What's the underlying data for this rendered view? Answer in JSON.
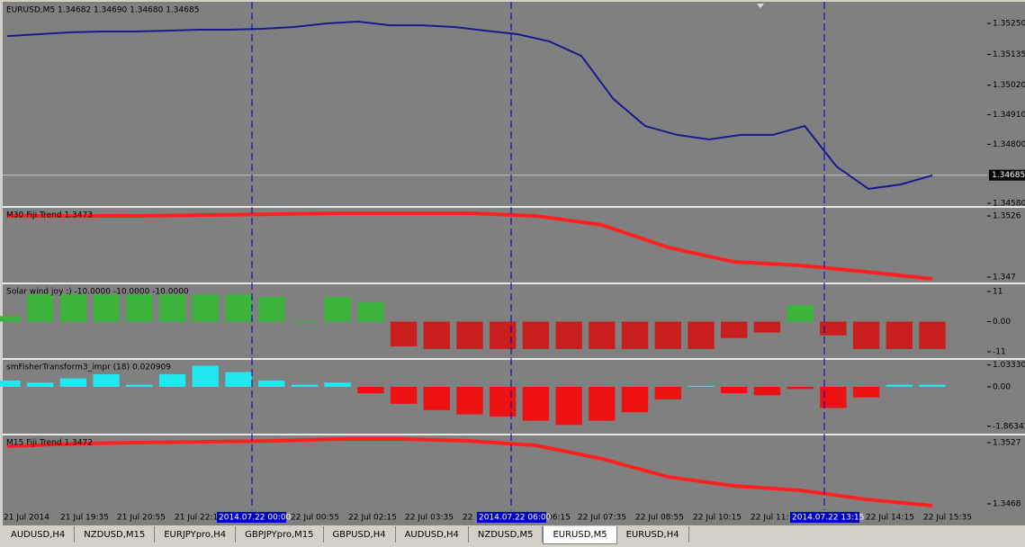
{
  "window": {
    "panels": [
      {
        "type": "line",
        "title": "EURUSD,M5  1.34682 1.34690 1.34680 1.34685",
        "color": "#1a1a8c",
        "values": [
          1.35203,
          1.3521,
          1.35217,
          1.3522,
          1.3522,
          1.35223,
          1.35227,
          1.35227,
          1.3523,
          1.35237,
          1.3525,
          1.35257,
          1.35243,
          1.35243,
          1.35237,
          1.35223,
          1.3521,
          1.35183,
          1.35129,
          1.34969,
          1.34868,
          1.34835,
          1.34818,
          1.34835,
          1.34835,
          1.34868,
          1.34717,
          1.34634,
          1.3465,
          1.34684
        ],
        "ylim": [
          1.3457,
          1.35324
        ],
        "yticks": [
          {
            "value": 1.3525,
            "label": "1.35250"
          },
          1.35135,
          {
            "value": 1.3502,
            "label": "1.35020"
          },
          {
            "value": 1.3491,
            "label": "1.34910"
          },
          {
            "value": 1.348,
            "label": "1.34800"
          },
          {
            "value": 1.3458,
            "label": "1.34580"
          }
        ],
        "current_price": 1.34685
      },
      {
        "type": "line",
        "title": "M30 Fiji Trend 1.3473",
        "color": "#ff2020",
        "values": [
          1.3526,
          1.3526,
          1.3526,
          1.35268,
          1.35276,
          1.35285,
          1.35285,
          1.35285,
          1.3526,
          1.35178,
          1.34972,
          1.3484,
          1.34807,
          1.34749,
          1.34684
        ],
        "ylim": [
          1.34651,
          1.35326
        ],
        "yticks": [
          1.3526,
          1.347
        ]
      },
      {
        "type": "histogram",
        "title": "Solar wind joy :) -10.0000 -10.0000 -10.0000",
        "pos_color": "#3cb43c",
        "neg_color": "#c81e1e",
        "values": [
          2,
          10,
          10,
          10,
          10,
          10,
          10,
          10,
          9,
          0,
          9,
          7,
          -9,
          -10,
          -10,
          -10,
          -10,
          -10,
          -10,
          -10,
          -10,
          -10,
          -6,
          -4,
          6,
          -5,
          -10,
          -10,
          -10
        ],
        "ylim": [
          -13.3,
          13.3
        ],
        "yticks": [
          11,
          {
            "value": 0,
            "label": "0.00"
          },
          -11
        ]
      },
      {
        "type": "histogram",
        "title": "smFisherTransform3_impr  (18) 0.020909",
        "pos_color": "#22e6f0",
        "neg_color": "#ee1111",
        "values": [
          0.3,
          0.2,
          0.4,
          0.6,
          0.1,
          0.6,
          1.0,
          0.7,
          0.3,
          0.1,
          0.2,
          -0.3,
          -0.8,
          -1.1,
          -1.3,
          -1.4,
          -1.6,
          -1.8,
          -1.6,
          -1.2,
          -0.6,
          0.05,
          -0.3,
          -0.4,
          -0.1,
          -1.0,
          -0.5,
          0.1,
          0.1
        ],
        "ylim": [
          -2.213,
          1.234
        ],
        "yticks": [
          1.033303,
          {
            "value": 0,
            "label": "0.00"
          },
          -1.863421
        ]
      },
      {
        "type": "line",
        "title": "M15 Fiji Trend 1.3472",
        "color": "#ff2020",
        "values": [
          1.35235,
          1.35261,
          1.3527,
          1.35279,
          1.35287,
          1.35305,
          1.35305,
          1.35287,
          1.35244,
          1.35114,
          1.3494,
          1.34853,
          1.3481,
          1.34723,
          1.34662
        ],
        "ylim": [
          1.34628,
          1.35331
        ],
        "yticks": [
          1.3527,
          1.3468
        ]
      }
    ],
    "time_labels": [
      "21 Jul 2014",
      "21 Jul 19:35",
      "21 Jul 20:55",
      "21 Jul 22:1",
      "22 Jul 00:55",
      "22 Jul 02:15",
      "22 Jul 03:35",
      "22",
      "06:15",
      "22 Jul 07:35",
      "22 Jul 08:55",
      "22 Jul 10:15",
      "22 Jul 11:",
      "22 Jul 14:15",
      "22 Jul 15:35"
    ],
    "cursor_labels": [
      "2014.07.22 00:00",
      "2014.07.22 06:00",
      "2014.07.22 13:15"
    ],
    "tabs": [
      "AUDUSD,H4",
      "NZDUSD,M15",
      "EURJPYpro,H4",
      "GBPJPYpro,M15",
      "GBPUSD,H4",
      "AUDUSD,H4",
      "NZDUSD,M5",
      "EURUSD,M5",
      "EURUSD,H4"
    ],
    "active_tab": 7
  }
}
